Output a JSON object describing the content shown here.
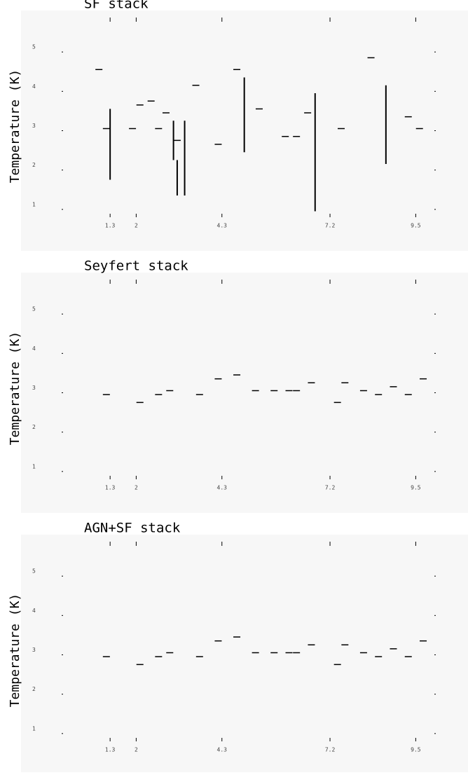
{
  "chart_data": [
    {
      "type": "dash",
      "title": "SF stack",
      "y_label": "Temperature (K)",
      "xlim": [
        0,
        10
      ],
      "xticks": [
        1.3,
        2.0,
        4.3,
        7.2,
        9.5
      ],
      "ylim": [
        0,
        6
      ],
      "yticks": [
        1,
        2,
        3,
        4,
        5
      ],
      "color": "#000000",
      "x": [
        1.0,
        1.2,
        1.9,
        2.1,
        2.4,
        2.6,
        2.8,
        3.1,
        3.6,
        4.2,
        4.7,
        5.3,
        6.0,
        6.3,
        6.6,
        7.5,
        8.3,
        9.3,
        9.6
      ],
      "values": [
        4.5,
        3.0,
        3.0,
        3.6,
        3.7,
        3.0,
        3.4,
        2.7,
        4.1,
        2.6,
        4.5,
        3.5,
        2.8,
        2.8,
        3.4,
        3.0,
        4.8,
        3.3,
        3.0
      ],
      "error_bars": {
        "x": [
          1.3,
          3.0,
          3.1,
          3.3,
          4.9,
          6.8,
          8.7
        ],
        "low": [
          1.7,
          2.2,
          1.3,
          1.3,
          2.4,
          0.9,
          2.1
        ],
        "high": [
          3.5,
          3.2,
          2.2,
          3.2,
          4.3,
          3.9,
          4.1
        ]
      }
    },
    {
      "type": "dash",
      "title": "Seyfert stack",
      "y_label": "Temperature (K)",
      "xlim": [
        0,
        10
      ],
      "xticks": [
        1.3,
        2.0,
        4.3,
        7.2,
        9.5
      ],
      "ylim": [
        0,
        6
      ],
      "yticks": [
        1,
        2,
        3,
        4,
        5
      ],
      "color": "#000000",
      "x": [
        1.2,
        2.1,
        2.6,
        2.9,
        3.7,
        4.2,
        4.7,
        5.2,
        5.7,
        6.1,
        6.3,
        6.7,
        7.4,
        7.6,
        8.1,
        8.5,
        8.9,
        9.3,
        9.7
      ],
      "values": [
        2.9,
        2.7,
        2.9,
        3.0,
        2.9,
        3.3,
        3.4,
        3.0,
        3.0,
        3.0,
        3.0,
        3.2,
        2.7,
        3.2,
        3.0,
        2.9,
        3.1,
        2.9,
        3.3
      ]
    },
    {
      "type": "dash",
      "title": "AGN+SF stack",
      "y_label": "Temperature (K)",
      "xlim": [
        0,
        10
      ],
      "xticks": [
        1.3,
        2.0,
        4.3,
        7.2,
        9.5
      ],
      "ylim": [
        0,
        6
      ],
      "yticks": [
        1,
        2,
        3,
        4,
        5
      ],
      "color": "#000000",
      "x": [
        1.2,
        2.1,
        2.6,
        2.9,
        3.7,
        4.2,
        4.7,
        5.2,
        5.7,
        6.1,
        6.3,
        6.7,
        7.4,
        7.6,
        8.1,
        8.5,
        8.9,
        9.3,
        9.7
      ],
      "values": [
        2.9,
        2.7,
        2.9,
        3.0,
        2.9,
        3.3,
        3.4,
        3.0,
        3.0,
        3.0,
        3.0,
        3.2,
        2.7,
        3.2,
        3.0,
        2.9,
        3.1,
        2.9,
        3.3
      ]
    }
  ]
}
